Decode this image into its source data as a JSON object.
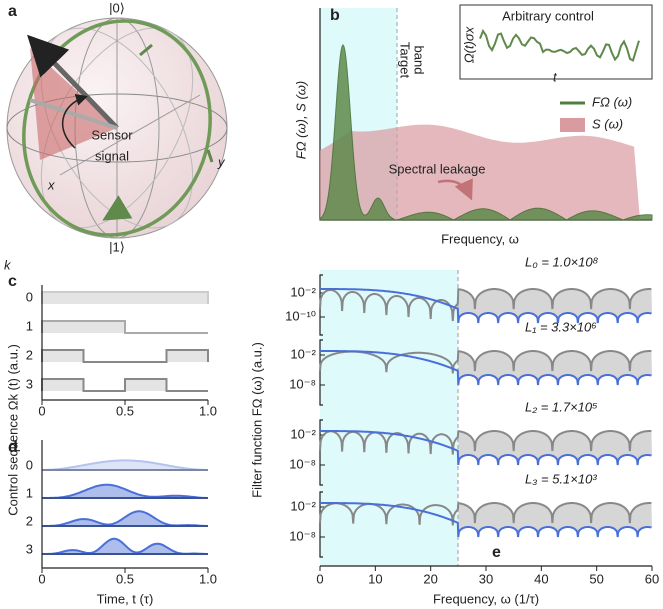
{
  "figure": {
    "a": {
      "label": "a",
      "ket0": "|0⟩",
      "ket1": "|1⟩",
      "x": "x",
      "y": "y",
      "sensor": "Sensor",
      "signal": "signal"
    },
    "b": {
      "label": "b",
      "ylabel": "FΩ (ω), S (ω)",
      "xlabel": "Frequency, ω",
      "band_label": [
        "Target",
        "band"
      ],
      "inset_title": "Arbitrary control",
      "inset_ylabel": "Ω(t)σx",
      "inset_xlabel": "t",
      "legend": [
        {
          "name": "FΩ (ω)",
          "color": "#4f7f3c"
        },
        {
          "name": "S (ω)",
          "color": "#d99aa0"
        }
      ],
      "annotation": "Spectral leakage"
    },
    "c": {
      "label": "c",
      "row_title": "k",
      "rows": [
        0,
        1,
        2,
        3
      ],
      "xticks": [
        0,
        0.5,
        {
          "value": 1,
          "label": "1.0"
        }
      ]
    },
    "d": {
      "label": "d",
      "rows": [
        0,
        1,
        2,
        3
      ],
      "xticks": [
        0,
        0.5,
        {
          "value": 1,
          "label": "1.0"
        }
      ],
      "xlabel": "Time, t (τ)"
    },
    "cd_ylabel": "Control sequence Ωk (t) (a.u.)",
    "e": {
      "label": "e",
      "xlabel": "Frequency, ω (1/τ)",
      "ylabel": "Filter function FΩ (ω) (a.u.)",
      "xlim": [
        0,
        60
      ],
      "xticks": [
        0,
        10,
        20,
        30,
        40,
        50,
        60
      ],
      "panels": [
        {
          "name": "L₀ = 1.0×10⁸",
          "ylim": [
            1e-16,
            10000
          ],
          "yticks": [
            {
              "value": 0.01,
              "label": "10⁻²"
            },
            {
              "value": 1e-10,
              "label": "10⁻¹⁰"
            }
          ]
        },
        {
          "name": "L₁ = 3.3×10⁶",
          "ylim": [
            1e-12,
            10
          ],
          "yticks": [
            {
              "value": 0.01,
              "label": "10⁻²"
            },
            {
              "value": 1e-08,
              "label": "10⁻⁸"
            }
          ]
        },
        {
          "name": "L₂ = 1.7×10⁵",
          "ylim": [
            1e-12,
            10
          ],
          "yticks": [
            {
              "value": 0.01,
              "label": "10⁻²"
            },
            {
              "value": 1e-08,
              "label": "10⁻⁸"
            }
          ]
        },
        {
          "name": "L₃ = 5.1×10³",
          "ylim": [
            1e-12,
            10
          ],
          "yticks": [
            {
              "value": 0.01,
              "label": "10⁻²"
            },
            {
              "value": 1e-08,
              "label": "10⁻⁸"
            }
          ]
        }
      ]
    }
  }
}
